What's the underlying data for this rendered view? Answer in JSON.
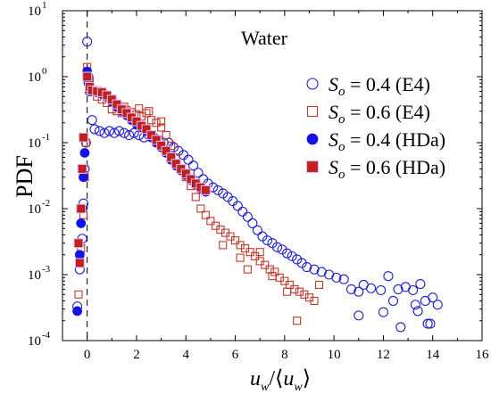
{
  "chart_data": {
    "type": "scatter",
    "title": "",
    "annotation": "Water",
    "xlabel": "u_w / ⟨u_w⟩",
    "xlabel_parts": {
      "var": "u",
      "sub": "w",
      "lbracket": "⟨",
      "rbracket": "⟩"
    },
    "ylabel": "PDF",
    "xlim": [
      -1,
      16
    ],
    "ylim": [
      0.0001,
      10
    ],
    "yscale": "log",
    "x_ticks": [
      0,
      2,
      4,
      6,
      8,
      10,
      12,
      14,
      16
    ],
    "y_ticks": [
      {
        "value": 0.0001,
        "base": "10",
        "exp": "-4"
      },
      {
        "value": 0.001,
        "base": "10",
        "exp": "-3"
      },
      {
        "value": 0.01,
        "base": "10",
        "exp": "-2"
      },
      {
        "value": 0.1,
        "base": "10",
        "exp": "-1"
      },
      {
        "value": 1,
        "base": "10",
        "exp": "0"
      },
      {
        "value": 10,
        "base": "10",
        "exp": "1"
      }
    ],
    "reference_line": {
      "x": 0,
      "style": "dashed"
    },
    "legend_position": "top-right",
    "series": [
      {
        "name": "S_o = 0.4 (E4)",
        "label_parts": {
          "s": "S",
          "sub": "o",
          "rest": " = 0.4 (E4)"
        },
        "marker": "circle-open",
        "color": "#1f1fd0",
        "points": [
          [
            -0.4,
            0.00033
          ],
          [
            -0.3,
            0.0012
          ],
          [
            -0.2,
            0.0035
          ],
          [
            -0.15,
            0.012
          ],
          [
            -0.1,
            0.04
          ],
          [
            -0.05,
            0.1
          ],
          [
            0.0,
            3.4
          ],
          [
            0.05,
            1.0
          ],
          [
            0.1,
            0.6
          ],
          [
            0.2,
            0.22
          ],
          [
            0.3,
            0.16
          ],
          [
            0.5,
            0.15
          ],
          [
            0.7,
            0.14
          ],
          [
            0.9,
            0.15
          ],
          [
            1.1,
            0.14
          ],
          [
            1.3,
            0.15
          ],
          [
            1.5,
            0.14
          ],
          [
            1.7,
            0.13
          ],
          [
            1.9,
            0.14
          ],
          [
            2.1,
            0.13
          ],
          [
            2.3,
            0.12
          ],
          [
            2.5,
            0.13
          ],
          [
            2.7,
            0.12
          ],
          [
            2.9,
            0.11
          ],
          [
            3.1,
            0.1
          ],
          [
            3.3,
            0.1
          ],
          [
            3.5,
            0.085
          ],
          [
            3.7,
            0.075
          ],
          [
            3.9,
            0.065
          ],
          [
            4.1,
            0.055
          ],
          [
            4.3,
            0.045
          ],
          [
            4.5,
            0.035
          ],
          [
            4.7,
            0.028
          ],
          [
            4.9,
            0.024
          ],
          [
            5.1,
            0.021
          ],
          [
            5.3,
            0.019
          ],
          [
            5.5,
            0.017
          ],
          [
            5.7,
            0.015
          ],
          [
            5.9,
            0.013
          ],
          [
            6.1,
            0.011
          ],
          [
            6.3,
            0.009
          ],
          [
            6.5,
            0.0075
          ],
          [
            6.7,
            0.006
          ],
          [
            6.9,
            0.0047
          ],
          [
            7.1,
            0.0038
          ],
          [
            7.3,
            0.0033
          ],
          [
            7.5,
            0.003
          ],
          [
            7.7,
            0.0026
          ],
          [
            7.9,
            0.0024
          ],
          [
            8.1,
            0.0021
          ],
          [
            8.3,
            0.0019
          ],
          [
            8.5,
            0.0017
          ],
          [
            8.7,
            0.0015
          ],
          [
            8.9,
            0.0013
          ],
          [
            9.2,
            0.0012
          ],
          [
            9.5,
            0.0011
          ],
          [
            9.8,
            0.001
          ],
          [
            10.1,
            0.0009
          ],
          [
            10.4,
            0.00085
          ],
          [
            10.7,
            0.0006
          ],
          [
            11.0,
            0.00055
          ],
          [
            11.2,
            0.0007
          ],
          [
            11.5,
            0.00062
          ],
          [
            11.9,
            0.00058
          ],
          [
            12.2,
            0.00095
          ],
          [
            12.4,
            0.0004
          ],
          [
            12.6,
            0.0006
          ],
          [
            12.9,
            0.00065
          ],
          [
            13.2,
            0.00058
          ],
          [
            13.5,
            0.00072
          ],
          [
            13.7,
            0.0004
          ],
          [
            14.0,
            0.00045
          ],
          [
            14.2,
            0.00035
          ],
          [
            11.0,
            0.00024
          ],
          [
            12.0,
            0.00027
          ],
          [
            12.7,
            0.00016
          ],
          [
            13.4,
            0.00028
          ],
          [
            13.8,
            0.00018
          ],
          [
            13.9,
            0.00018
          ],
          [
            13.3,
            0.00035
          ]
        ]
      },
      {
        "name": "S_o = 0.6 (E4)",
        "label_parts": {
          "s": "S",
          "sub": "o",
          "rest": " = 0.6 (E4)"
        },
        "marker": "square-open",
        "color": "#c0392b",
        "points": [
          [
            -0.35,
            0.0005
          ],
          [
            -0.25,
            0.0025
          ],
          [
            -0.15,
            0.008
          ],
          [
            -0.1,
            0.03
          ],
          [
            -0.05,
            0.1
          ],
          [
            0.0,
            1.4
          ],
          [
            0.1,
            0.85
          ],
          [
            0.2,
            0.6
          ],
          [
            0.4,
            0.5
          ],
          [
            0.6,
            0.45
          ],
          [
            0.8,
            0.4
          ],
          [
            1.0,
            0.32
          ],
          [
            1.2,
            0.3
          ],
          [
            1.4,
            0.28
          ],
          [
            1.6,
            0.31
          ],
          [
            1.8,
            0.29
          ],
          [
            2.0,
            0.27
          ],
          [
            2.2,
            0.25
          ],
          [
            2.4,
            0.28
          ],
          [
            2.6,
            0.22
          ],
          [
            2.8,
            0.2
          ],
          [
            3.0,
            0.17
          ],
          [
            3.2,
            0.13
          ],
          [
            3.4,
            0.09
          ],
          [
            3.6,
            0.06
          ],
          [
            3.8,
            0.04
          ],
          [
            4.0,
            0.03
          ],
          [
            4.2,
            0.022
          ],
          [
            4.4,
            0.015
          ],
          [
            4.6,
            0.01
          ],
          [
            4.8,
            0.008
          ],
          [
            5.0,
            0.0065
          ],
          [
            5.2,
            0.0055
          ],
          [
            5.4,
            0.0048
          ],
          [
            5.6,
            0.0043
          ],
          [
            5.8,
            0.0038
          ],
          [
            6.0,
            0.0033
          ],
          [
            6.2,
            0.0028
          ],
          [
            6.4,
            0.0025
          ],
          [
            6.6,
            0.0022
          ],
          [
            6.8,
            0.0019
          ],
          [
            7.0,
            0.0016
          ],
          [
            7.2,
            0.0014
          ],
          [
            7.4,
            0.0012
          ],
          [
            7.6,
            0.0011
          ],
          [
            7.8,
            0.0009
          ],
          [
            8.0,
            0.0008
          ],
          [
            8.2,
            0.0007
          ],
          [
            8.4,
            0.0006
          ],
          [
            8.6,
            0.00055
          ],
          [
            8.8,
            0.0005
          ],
          [
            9.0,
            0.00045
          ],
          [
            9.2,
            0.0004
          ],
          [
            6.5,
            0.0012
          ],
          [
            7.5,
            0.00095
          ],
          [
            8.1,
            0.00055
          ],
          [
            8.5,
            0.0002
          ],
          [
            9.4,
            0.0007
          ],
          [
            5.5,
            0.0028
          ],
          [
            6.2,
            0.0018
          ],
          [
            7.0,
            0.0022
          ],
          [
            1.5,
            0.35
          ],
          [
            2.5,
            0.3
          ],
          [
            2.1,
            0.33
          ],
          [
            3.0,
            0.21
          ]
        ]
      },
      {
        "name": "S_o = 0.4 (HDa)",
        "label_parts": {
          "s": "S",
          "sub": "o",
          "rest": " = 0.4 (HDa)"
        },
        "marker": "circle-filled",
        "color": "#1414e6",
        "points": [
          [
            -0.4,
            0.00028
          ],
          [
            -0.3,
            0.002
          ],
          [
            -0.25,
            0.006
          ],
          [
            -0.2,
            0.01
          ],
          [
            -0.15,
            0.03
          ],
          [
            -0.1,
            0.07
          ],
          [
            0.0,
            1.2
          ],
          [
            0.05,
            0.8
          ],
          [
            0.1,
            0.65
          ],
          [
            0.2,
            0.6
          ],
          [
            0.4,
            0.58
          ],
          [
            0.6,
            0.55
          ],
          [
            0.8,
            0.5
          ],
          [
            1.0,
            0.42
          ],
          [
            1.2,
            0.35
          ],
          [
            1.4,
            0.3
          ],
          [
            1.6,
            0.26
          ],
          [
            1.8,
            0.22
          ],
          [
            2.0,
            0.19
          ],
          [
            2.2,
            0.17
          ],
          [
            2.4,
            0.15
          ],
          [
            2.6,
            0.12
          ],
          [
            2.8,
            0.1
          ],
          [
            3.0,
            0.085
          ],
          [
            3.2,
            0.07
          ],
          [
            3.4,
            0.055
          ],
          [
            3.6,
            0.045
          ],
          [
            3.8,
            0.038
          ],
          [
            4.0,
            0.032
          ],
          [
            4.2,
            0.027
          ],
          [
            4.4,
            0.023
          ],
          [
            4.6,
            0.02
          ],
          [
            4.8,
            0.018
          ]
        ]
      },
      {
        "name": "S_o = 0.6 (HDa)",
        "label_parts": {
          "s": "S",
          "sub": "o",
          "rest": " = 0.6 (HDa)"
        },
        "marker": "square-filled",
        "color": "#c81e1e",
        "points": [
          [
            -0.35,
            0.003
          ],
          [
            -0.3,
            0.0015
          ],
          [
            -0.25,
            0.01
          ],
          [
            -0.2,
            0.04
          ],
          [
            -0.15,
            0.12
          ],
          [
            0.0,
            1.0
          ],
          [
            0.1,
            0.7
          ],
          [
            0.2,
            0.62
          ],
          [
            0.4,
            0.6
          ],
          [
            0.6,
            0.58
          ],
          [
            0.8,
            0.52
          ],
          [
            1.0,
            0.45
          ],
          [
            1.2,
            0.38
          ],
          [
            1.4,
            0.32
          ],
          [
            1.6,
            0.28
          ],
          [
            1.8,
            0.24
          ],
          [
            2.0,
            0.21
          ],
          [
            2.2,
            0.18
          ],
          [
            2.4,
            0.16
          ],
          [
            2.6,
            0.13
          ],
          [
            2.8,
            0.11
          ],
          [
            3.0,
            0.09
          ],
          [
            3.2,
            0.075
          ],
          [
            3.4,
            0.06
          ],
          [
            3.6,
            0.048
          ],
          [
            3.8,
            0.04
          ],
          [
            4.0,
            0.034
          ],
          [
            4.2,
            0.028
          ],
          [
            4.4,
            0.024
          ],
          [
            4.6,
            0.021
          ],
          [
            4.8,
            0.019
          ]
        ]
      }
    ]
  }
}
